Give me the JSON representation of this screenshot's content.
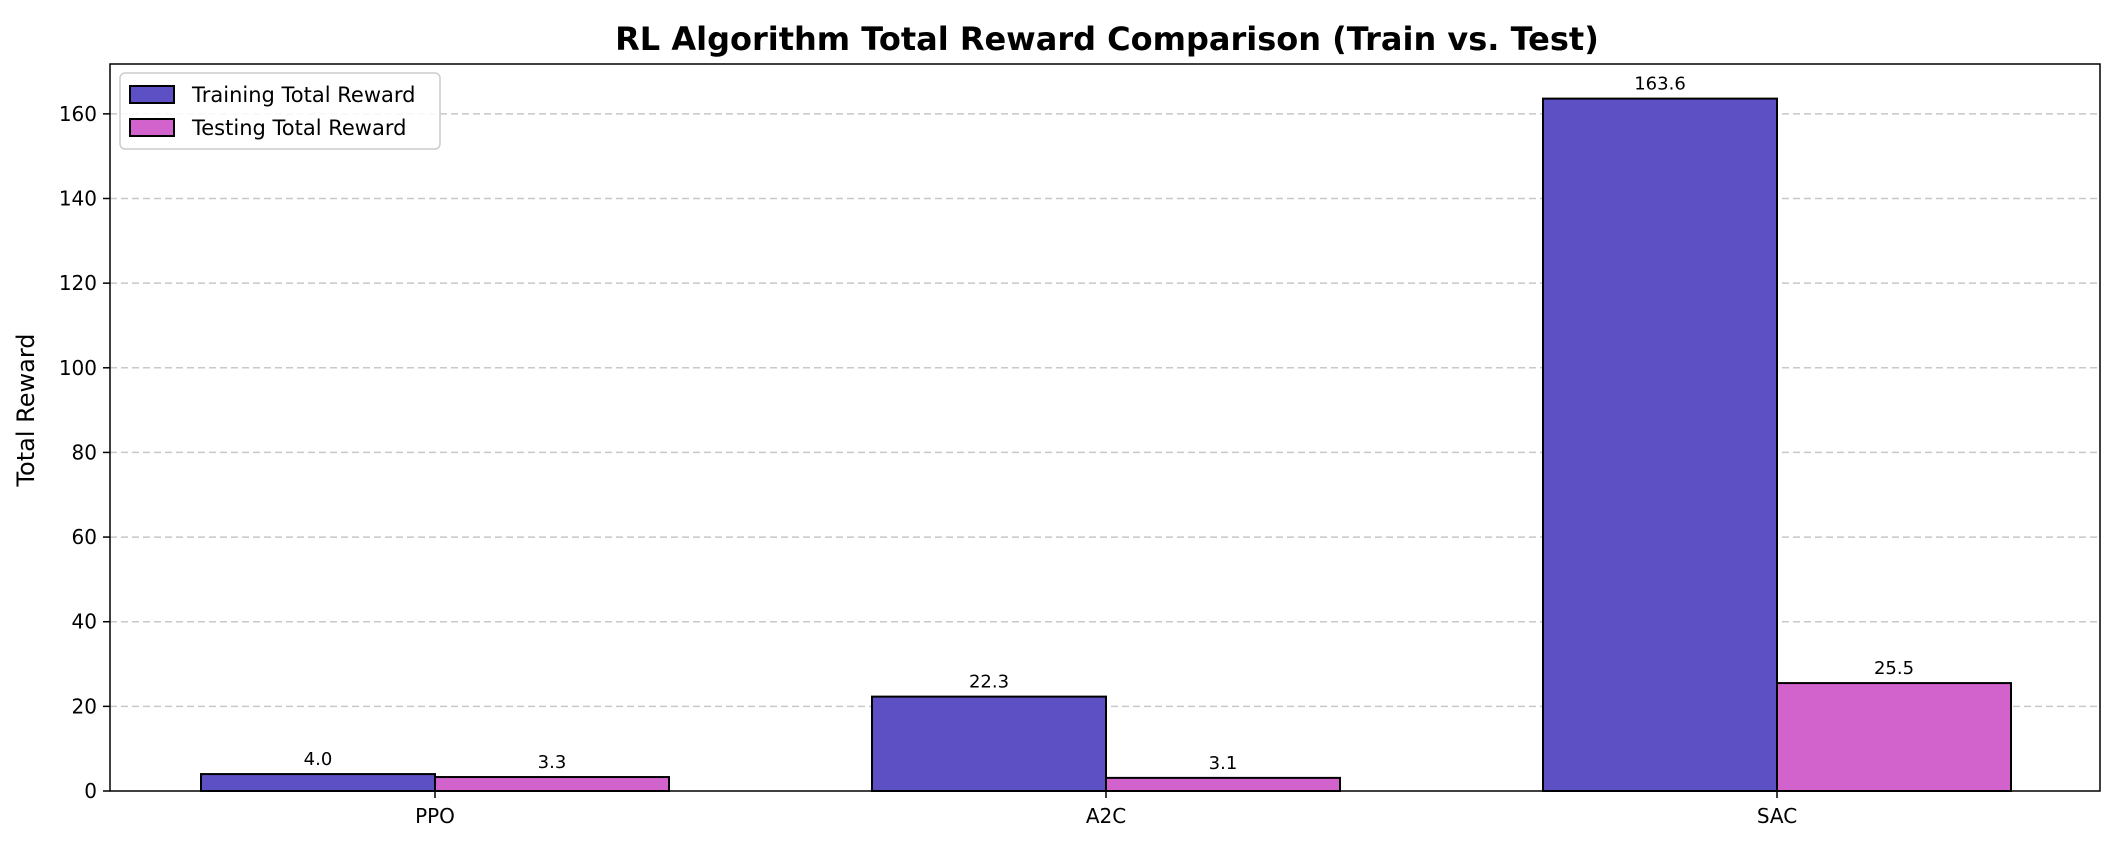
{
  "chart_data": {
    "type": "bar",
    "title": "RL Algorithm Total Reward Comparison (Train vs. Test)",
    "xlabel": "",
    "ylabel": "Total Reward",
    "categories": [
      "PPO",
      "A2C",
      "SAC"
    ],
    "series": [
      {
        "name": "Training Total Reward",
        "values": [
          4.0,
          22.3,
          163.6
        ],
        "labels": [
          "4.0",
          "22.3",
          "163.6"
        ],
        "color": "#5c50c4"
      },
      {
        "name": "Testing Total Reward",
        "values": [
          3.3,
          3.1,
          25.5
        ],
        "labels": [
          "3.3",
          "3.1",
          "25.5"
        ],
        "color": "#d263cc"
      }
    ],
    "ylim": [
      0,
      171.78
    ],
    "yticks": [
      0,
      20,
      40,
      60,
      80,
      100,
      120,
      140,
      160
    ],
    "grid": "y-dashed",
    "legend": "top-left"
  }
}
